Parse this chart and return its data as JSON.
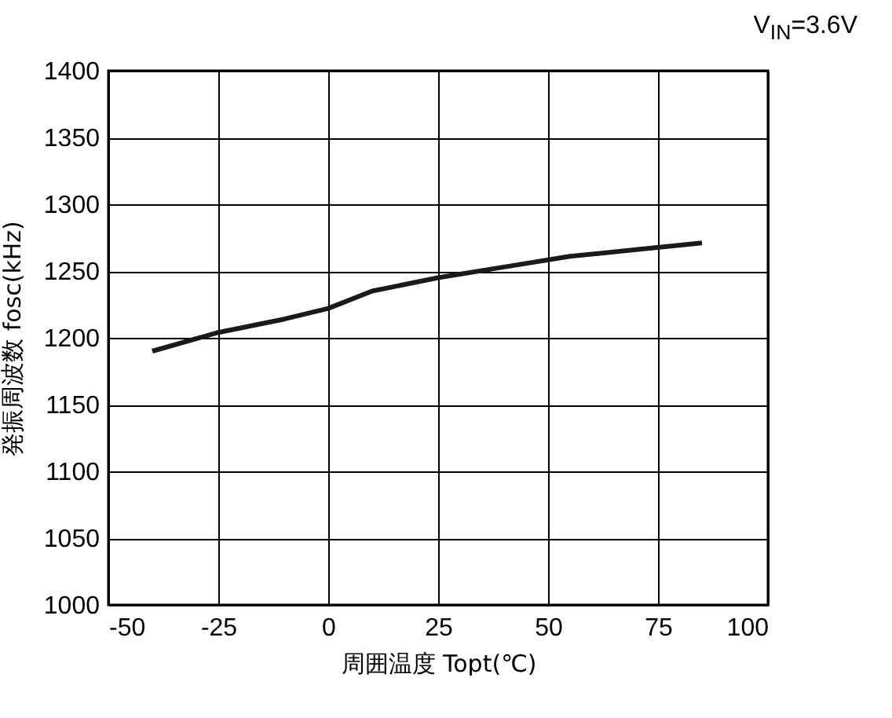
{
  "chart_data": {
    "type": "line",
    "xlabel": "周囲温度 Topt(℃)",
    "ylabel": "発振周波数 fosc(kHz)",
    "annotations": [
      "V$_{IN}$=3.6V"
    ],
    "x": [
      -40,
      -25,
      -10,
      0,
      10,
      25,
      40,
      55,
      70,
      85
    ],
    "series": [
      {
        "color": "#1a1a1a",
        "values": [
          1190,
          1204,
          1214,
          1222,
          1235,
          1245,
          1253,
          1261,
          1266,
          1271
        ]
      }
    ],
    "xlim": [
      -50,
      100
    ],
    "xticks": [
      -50,
      -25,
      0,
      25,
      50,
      75,
      100
    ],
    "ylim": [
      1000,
      1400
    ],
    "yticks": [
      1000,
      1050,
      1100,
      1150,
      1200,
      1250,
      1300,
      1350,
      1400
    ],
    "grid": true,
    "legend": false,
    "marker": "none",
    "line_style": "solid"
  }
}
